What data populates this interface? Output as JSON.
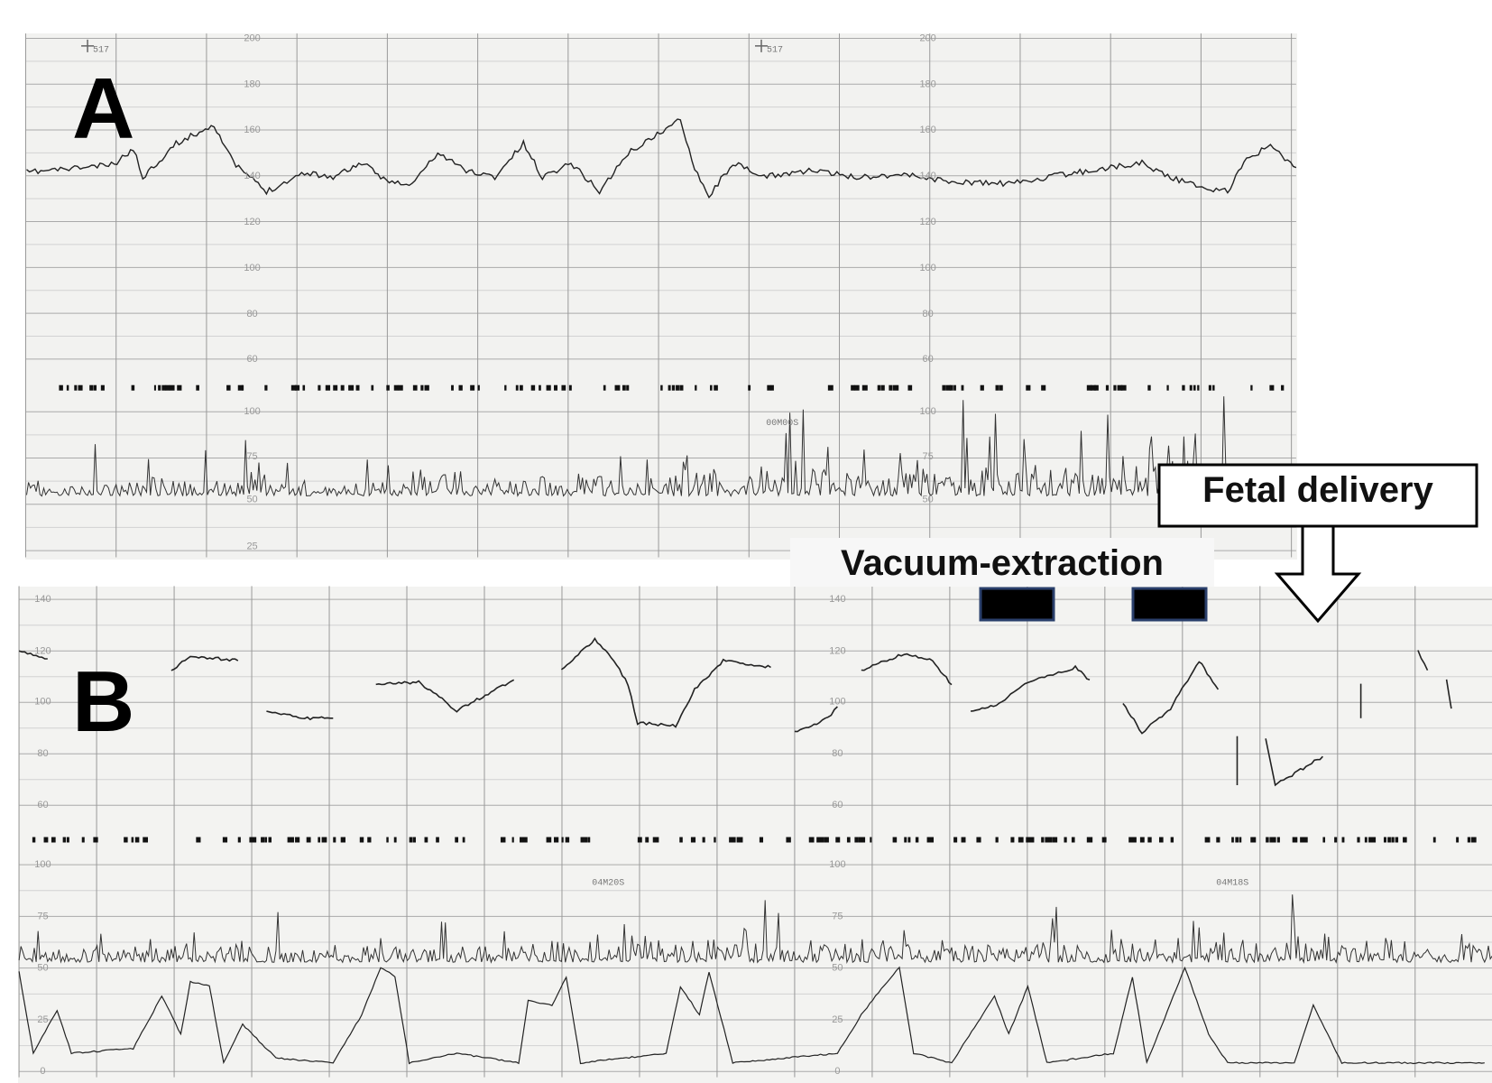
{
  "panel_a": {
    "label": "A",
    "marker": "517",
    "timer": "00M00S",
    "fhr_scale": [
      "200",
      "180",
      "160",
      "140",
      "120",
      "100",
      "80",
      "60"
    ],
    "uc_scale": [
      "100",
      "75",
      "50",
      "25"
    ]
  },
  "panel_b": {
    "label": "B",
    "timers": [
      "04M20S",
      "04M18S"
    ],
    "fhr_scale": [
      "140",
      "120",
      "100",
      "80",
      "60"
    ],
    "uc_scale": [
      "100",
      "75",
      "50",
      "25",
      "0"
    ]
  },
  "annotations": {
    "vacuum": "Vacuum-extraction",
    "delivery": "Fetal delivery"
  }
}
